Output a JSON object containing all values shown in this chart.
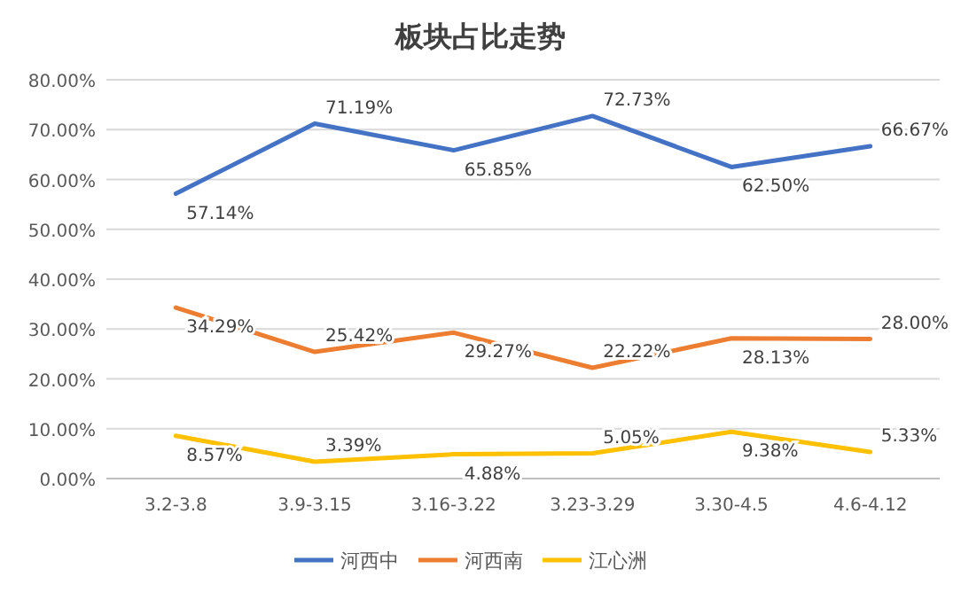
{
  "chart_data": {
    "type": "line",
    "title": "板块占比走势",
    "categories": [
      "3.2-3.8",
      "3.9-3.15",
      "3.16-3.22",
      "3.23-3.29",
      "3.30-4.5",
      "4.6-4.12"
    ],
    "series": [
      {
        "name": "河西中",
        "color": "#4472c4",
        "values": [
          57.14,
          71.19,
          65.85,
          72.73,
          62.5,
          66.67
        ],
        "value_labels": [
          "57.14%",
          "71.19%",
          "65.85%",
          "72.73%",
          "62.50%",
          "66.67%"
        ]
      },
      {
        "name": "河西南",
        "color": "#ed7d31",
        "values": [
          34.29,
          25.42,
          29.27,
          22.22,
          28.13,
          28.0
        ],
        "value_labels": [
          "34.29%",
          "25.42%",
          "29.27%",
          "22.22%",
          "28.13%",
          "28.00%"
        ]
      },
      {
        "name": "江心洲",
        "color": "#ffc000",
        "values": [
          8.57,
          3.39,
          4.88,
          5.05,
          9.38,
          5.33
        ],
        "value_labels": [
          "8.57%",
          "3.39%",
          "4.88%",
          "5.05%",
          "9.38%",
          "5.33%"
        ]
      }
    ],
    "ylim": [
      0,
      80
    ],
    "yticks": [
      {
        "value": 0,
        "label": "0.00%"
      },
      {
        "value": 10,
        "label": "10.00%"
      },
      {
        "value": 20,
        "label": "20.00%"
      },
      {
        "value": 30,
        "label": "30.00%"
      },
      {
        "value": 40,
        "label": "40.00%"
      },
      {
        "value": 50,
        "label": "50.00%"
      },
      {
        "value": 60,
        "label": "60.00%"
      },
      {
        "value": 70,
        "label": "70.00%"
      },
      {
        "value": 80,
        "label": "80.00%"
      }
    ],
    "grid": "y",
    "legend": "bottom",
    "marker": "none",
    "line_style": "solid"
  }
}
